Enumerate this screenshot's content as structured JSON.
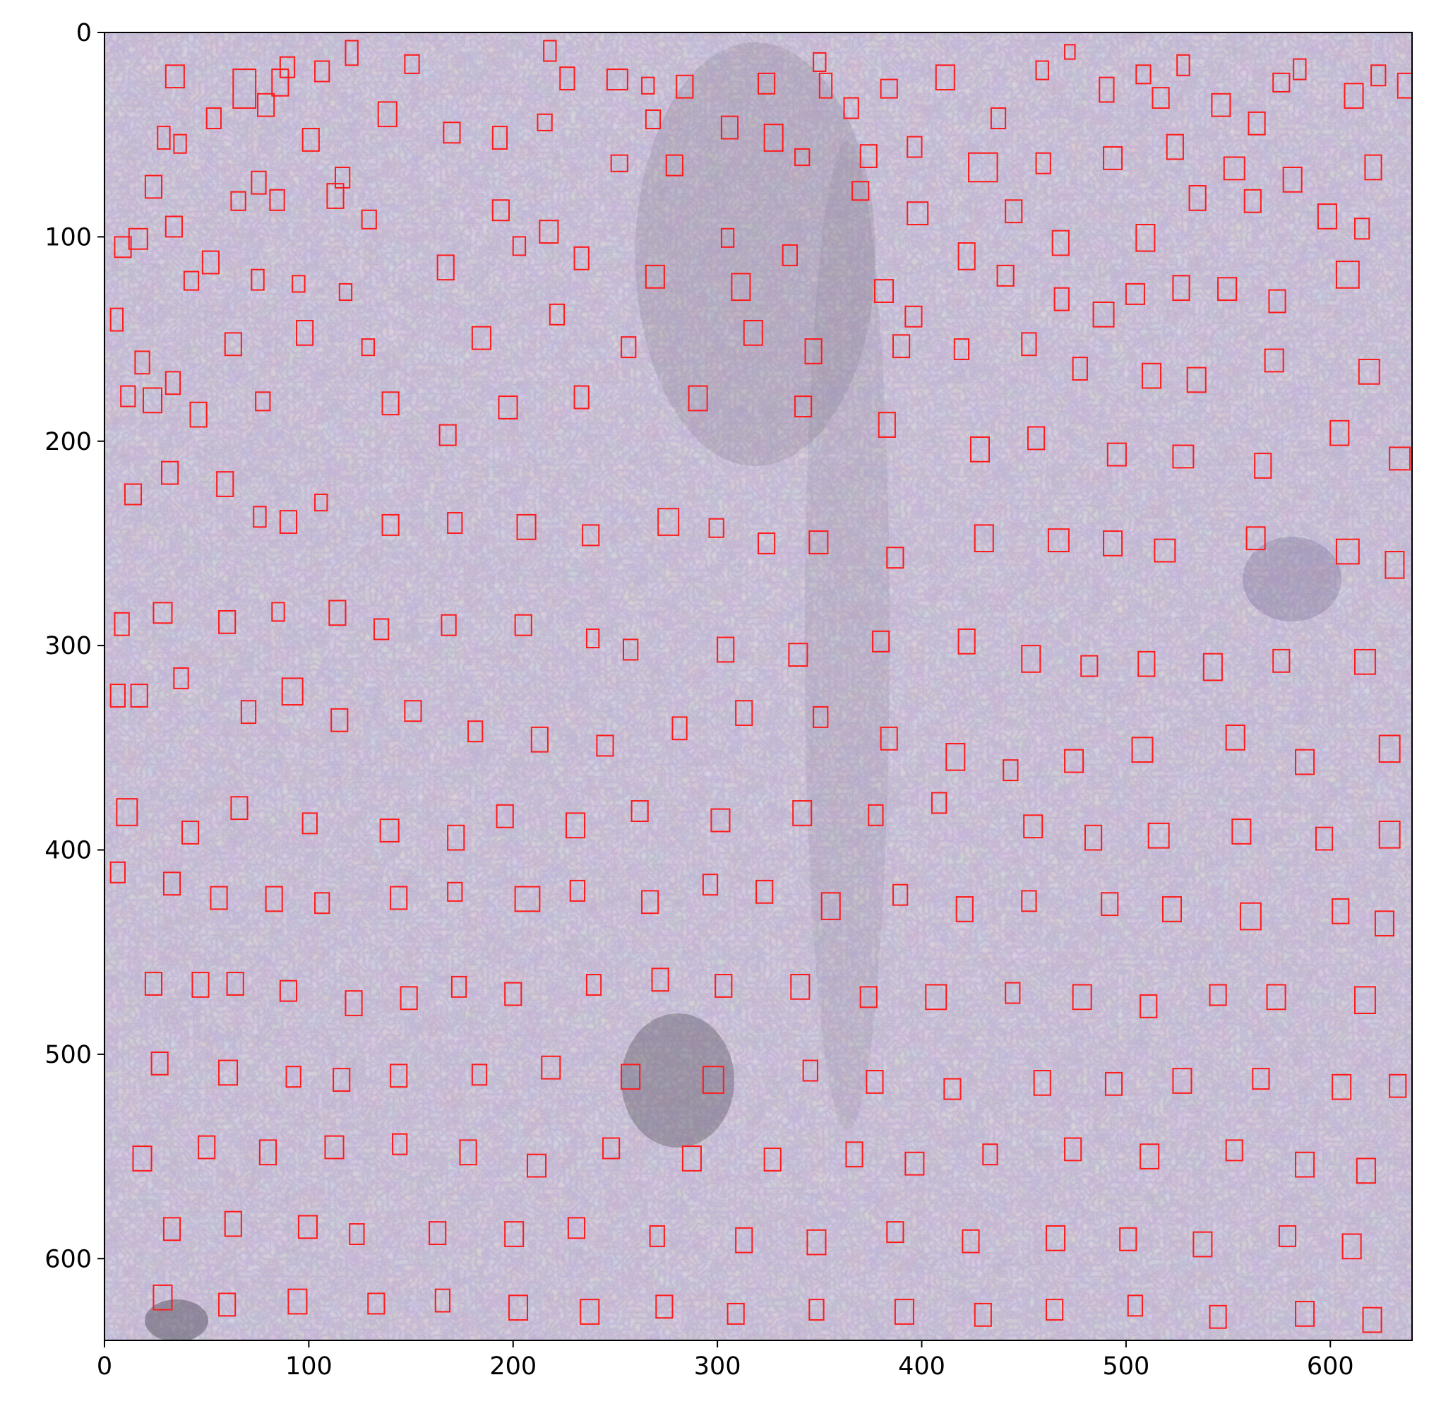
{
  "figure": {
    "image_description_tag": "microscope-image-yeast-cells",
    "x_range": [
      0,
      640
    ],
    "y_range": [
      0,
      640
    ],
    "y_inverted": true,
    "box_color": "#ff1a1a",
    "background_color": "#c9c2cc"
  },
  "axes": {
    "x_ticks": [
      {
        "value": 0,
        "label": "0"
      },
      {
        "value": 100,
        "label": "100"
      },
      {
        "value": 200,
        "label": "200"
      },
      {
        "value": 300,
        "label": "300"
      },
      {
        "value": 400,
        "label": "400"
      },
      {
        "value": 500,
        "label": "500"
      },
      {
        "value": 600,
        "label": "600"
      }
    ],
    "y_ticks": [
      {
        "value": 0,
        "label": "0"
      },
      {
        "value": 100,
        "label": "100"
      },
      {
        "value": 200,
        "label": "200"
      },
      {
        "value": 300,
        "label": "300"
      },
      {
        "value": 400,
        "label": "400"
      },
      {
        "value": 500,
        "label": "500"
      },
      {
        "value": 600,
        "label": "600"
      }
    ]
  },
  "detections": [
    [
      30,
      16,
      9,
      11
    ],
    [
      63,
      18,
      11,
      19
    ],
    [
      82,
      18,
      8,
      13
    ],
    [
      86,
      12,
      7,
      10
    ],
    [
      103,
      14,
      7,
      10
    ],
    [
      118,
      4,
      6,
      12
    ],
    [
      147,
      11,
      7,
      9
    ],
    [
      215,
      4,
      6,
      10
    ],
    [
      223,
      17,
      7,
      11
    ],
    [
      246,
      18,
      10,
      10
    ],
    [
      263,
      22,
      6,
      8
    ],
    [
      280,
      21,
      8,
      11
    ],
    [
      320,
      20,
      8,
      10
    ],
    [
      347,
      10,
      6,
      9
    ],
    [
      350,
      20,
      6,
      12
    ],
    [
      362,
      32,
      7,
      10
    ],
    [
      380,
      23,
      8,
      9
    ],
    [
      407,
      16,
      9,
      12
    ],
    [
      434,
      37,
      7,
      10
    ],
    [
      456,
      14,
      6,
      9
    ],
    [
      470,
      6,
      5,
      7
    ],
    [
      487,
      22,
      7,
      12
    ],
    [
      505,
      16,
      7,
      9
    ],
    [
      513,
      27,
      8,
      10
    ],
    [
      525,
      11,
      6,
      10
    ],
    [
      542,
      30,
      9,
      11
    ],
    [
      560,
      39,
      8,
      11
    ],
    [
      572,
      20,
      8,
      9
    ],
    [
      582,
      13,
      6,
      10
    ],
    [
      607,
      25,
      9,
      12
    ],
    [
      620,
      16,
      7,
      10
    ],
    [
      633,
      20,
      8,
      12
    ],
    [
      26,
      46,
      6,
      11
    ],
    [
      34,
      50,
      6,
      9
    ],
    [
      50,
      37,
      7,
      10
    ],
    [
      75,
      30,
      8,
      11
    ],
    [
      97,
      47,
      8,
      11
    ],
    [
      113,
      66,
      7,
      10
    ],
    [
      134,
      34,
      9,
      12
    ],
    [
      166,
      44,
      8,
      10
    ],
    [
      190,
      46,
      7,
      11
    ],
    [
      212,
      40,
      7,
      8
    ],
    [
      248,
      60,
      8,
      8
    ],
    [
      265,
      38,
      7,
      9
    ],
    [
      302,
      41,
      8,
      11
    ],
    [
      323,
      45,
      9,
      13
    ],
    [
      370,
      55,
      8,
      11
    ],
    [
      393,
      51,
      7,
      10
    ],
    [
      423,
      59,
      14,
      14
    ],
    [
      456,
      59,
      7,
      10
    ],
    [
      489,
      56,
      9,
      11
    ],
    [
      520,
      50,
      8,
      12
    ],
    [
      548,
      61,
      10,
      11
    ],
    [
      577,
      66,
      9,
      12
    ],
    [
      617,
      60,
      8,
      12
    ],
    [
      20,
      70,
      8,
      11
    ],
    [
      30,
      90,
      8,
      10
    ],
    [
      62,
      78,
      7,
      9
    ],
    [
      72,
      68,
      7,
      11
    ],
    [
      81,
      77,
      7,
      10
    ],
    [
      109,
      74,
      8,
      12
    ],
    [
      126,
      87,
      7,
      9
    ],
    [
      190,
      82,
      8,
      10
    ],
    [
      213,
      92,
      9,
      11
    ],
    [
      275,
      60,
      8,
      10
    ],
    [
      302,
      96,
      6,
      9
    ],
    [
      338,
      57,
      7,
      8
    ],
    [
      366,
      73,
      8,
      9
    ],
    [
      393,
      83,
      10,
      11
    ],
    [
      418,
      103,
      8,
      13
    ],
    [
      441,
      82,
      8,
      11
    ],
    [
      464,
      97,
      8,
      12
    ],
    [
      505,
      94,
      9,
      13
    ],
    [
      531,
      75,
      8,
      12
    ],
    [
      558,
      77,
      8,
      11
    ],
    [
      594,
      84,
      9,
      12
    ],
    [
      612,
      91,
      7,
      10
    ],
    [
      5,
      100,
      8,
      10
    ],
    [
      12,
      96,
      9,
      10
    ],
    [
      39,
      117,
      7,
      9
    ],
    [
      48,
      107,
      8,
      11
    ],
    [
      72,
      116,
      6,
      10
    ],
    [
      92,
      119,
      6,
      8
    ],
    [
      115,
      123,
      6,
      8
    ],
    [
      163,
      109,
      8,
      12
    ],
    [
      200,
      100,
      6,
      9
    ],
    [
      230,
      105,
      7,
      11
    ],
    [
      265,
      114,
      9,
      11
    ],
    [
      307,
      118,
      9,
      13
    ],
    [
      332,
      104,
      7,
      10
    ],
    [
      377,
      121,
      9,
      11
    ],
    [
      392,
      134,
      8,
      10
    ],
    [
      437,
      114,
      8,
      10
    ],
    [
      465,
      125,
      7,
      11
    ],
    [
      484,
      132,
      10,
      12
    ],
    [
      500,
      123,
      9,
      10
    ],
    [
      523,
      119,
      8,
      12
    ],
    [
      545,
      120,
      9,
      11
    ],
    [
      570,
      126,
      8,
      11
    ],
    [
      603,
      112,
      11,
      13
    ],
    [
      3,
      135,
      6,
      11
    ],
    [
      15,
      156,
      7,
      11
    ],
    [
      30,
      166,
      7,
      11
    ],
    [
      59,
      147,
      8,
      11
    ],
    [
      94,
      141,
      8,
      12
    ],
    [
      126,
      150,
      6,
      8
    ],
    [
      180,
      144,
      9,
      11
    ],
    [
      218,
      133,
      7,
      10
    ],
    [
      253,
      149,
      7,
      10
    ],
    [
      313,
      141,
      9,
      12
    ],
    [
      343,
      150,
      8,
      12
    ],
    [
      386,
      148,
      8,
      11
    ],
    [
      416,
      150,
      7,
      10
    ],
    [
      449,
      147,
      7,
      11
    ],
    [
      474,
      159,
      7,
      11
    ],
    [
      508,
      162,
      9,
      12
    ],
    [
      530,
      164,
      9,
      12
    ],
    [
      568,
      155,
      9,
      11
    ],
    [
      614,
      160,
      10,
      12
    ],
    [
      8,
      173,
      7,
      10
    ],
    [
      19,
      174,
      9,
      12
    ],
    [
      42,
      181,
      8,
      12
    ],
    [
      74,
      176,
      7,
      9
    ],
    [
      136,
      176,
      8,
      11
    ],
    [
      164,
      192,
      8,
      10
    ],
    [
      193,
      178,
      9,
      11
    ],
    [
      230,
      173,
      7,
      11
    ],
    [
      286,
      173,
      9,
      12
    ],
    [
      338,
      178,
      8,
      10
    ],
    [
      379,
      186,
      8,
      12
    ],
    [
      424,
      198,
      9,
      12
    ],
    [
      452,
      193,
      8,
      11
    ],
    [
      491,
      201,
      9,
      11
    ],
    [
      523,
      202,
      10,
      11
    ],
    [
      563,
      206,
      8,
      12
    ],
    [
      600,
      190,
      9,
      12
    ],
    [
      629,
      203,
      10,
      11
    ],
    [
      10,
      221,
      8,
      10
    ],
    [
      28,
      210,
      8,
      11
    ],
    [
      55,
      215,
      8,
      12
    ],
    [
      73,
      232,
      6,
      10
    ],
    [
      86,
      234,
      8,
      11
    ],
    [
      103,
      226,
      6,
      8
    ],
    [
      136,
      236,
      8,
      10
    ],
    [
      168,
      235,
      7,
      10
    ],
    [
      202,
      236,
      9,
      12
    ],
    [
      234,
      241,
      8,
      10
    ],
    [
      271,
      233,
      10,
      13
    ],
    [
      296,
      238,
      7,
      9
    ],
    [
      320,
      245,
      8,
      10
    ],
    [
      345,
      244,
      9,
      11
    ],
    [
      383,
      252,
      8,
      10
    ],
    [
      426,
      241,
      9,
      13
    ],
    [
      462,
      243,
      10,
      11
    ],
    [
      489,
      244,
      9,
      12
    ],
    [
      514,
      248,
      10,
      11
    ],
    [
      559,
      242,
      9,
      11
    ],
    [
      603,
      248,
      11,
      12
    ],
    [
      627,
      254,
      9,
      13
    ],
    [
      5,
      284,
      7,
      11
    ],
    [
      24,
      279,
      9,
      10
    ],
    [
      56,
      283,
      8,
      11
    ],
    [
      82,
      279,
      6,
      9
    ],
    [
      110,
      278,
      8,
      12
    ],
    [
      132,
      287,
      7,
      10
    ],
    [
      165,
      285,
      7,
      10
    ],
    [
      201,
      285,
      8,
      10
    ],
    [
      236,
      292,
      6,
      9
    ],
    [
      254,
      297,
      7,
      10
    ],
    [
      300,
      296,
      8,
      12
    ],
    [
      335,
      299,
      9,
      11
    ],
    [
      376,
      293,
      8,
      10
    ],
    [
      418,
      292,
      8,
      12
    ],
    [
      449,
      300,
      9,
      13
    ],
    [
      478,
      305,
      8,
      10
    ],
    [
      506,
      303,
      8,
      12
    ],
    [
      538,
      304,
      9,
      13
    ],
    [
      572,
      302,
      8,
      11
    ],
    [
      612,
      302,
      10,
      12
    ],
    [
      3,
      319,
      7,
      11
    ],
    [
      13,
      319,
      8,
      11
    ],
    [
      34,
      311,
      7,
      10
    ],
    [
      67,
      327,
      7,
      11
    ],
    [
      87,
      316,
      10,
      13
    ],
    [
      111,
      331,
      8,
      11
    ],
    [
      147,
      327,
      8,
      10
    ],
    [
      178,
      337,
      7,
      10
    ],
    [
      209,
      340,
      8,
      12
    ],
    [
      241,
      344,
      8,
      10
    ],
    [
      278,
      335,
      7,
      11
    ],
    [
      309,
      327,
      8,
      12
    ],
    [
      347,
      330,
      7,
      10
    ],
    [
      380,
      340,
      8,
      11
    ],
    [
      412,
      348,
      9,
      13
    ],
    [
      440,
      356,
      7,
      10
    ],
    [
      470,
      351,
      9,
      11
    ],
    [
      503,
      345,
      10,
      12
    ],
    [
      549,
      339,
      9,
      12
    ],
    [
      583,
      351,
      9,
      12
    ],
    [
      624,
      344,
      10,
      13
    ],
    [
      6,
      375,
      10,
      13
    ],
    [
      38,
      386,
      8,
      11
    ],
    [
      62,
      374,
      8,
      11
    ],
    [
      97,
      382,
      7,
      10
    ],
    [
      135,
      385,
      9,
      11
    ],
    [
      168,
      388,
      8,
      12
    ],
    [
      192,
      378,
      8,
      11
    ],
    [
      226,
      382,
      9,
      12
    ],
    [
      258,
      376,
      8,
      10
    ],
    [
      297,
      380,
      9,
      11
    ],
    [
      337,
      376,
      9,
      12
    ],
    [
      374,
      378,
      7,
      10
    ],
    [
      405,
      372,
      7,
      10
    ],
    [
      450,
      383,
      9,
      11
    ],
    [
      480,
      388,
      8,
      12
    ],
    [
      511,
      387,
      10,
      12
    ],
    [
      552,
      385,
      9,
      12
    ],
    [
      593,
      389,
      8,
      11
    ],
    [
      624,
      386,
      10,
      13
    ],
    [
      3,
      406,
      7,
      10
    ],
    [
      29,
      411,
      8,
      11
    ],
    [
      52,
      418,
      8,
      11
    ],
    [
      79,
      418,
      8,
      12
    ],
    [
      103,
      421,
      7,
      10
    ],
    [
      140,
      418,
      8,
      11
    ],
    [
      168,
      416,
      7,
      9
    ],
    [
      201,
      418,
      12,
      12
    ],
    [
      228,
      415,
      7,
      10
    ],
    [
      263,
      420,
      8,
      11
    ],
    [
      293,
      412,
      7,
      10
    ],
    [
      319,
      415,
      8,
      11
    ],
    [
      351,
      421,
      9,
      13
    ],
    [
      386,
      417,
      7,
      10
    ],
    [
      417,
      423,
      8,
      12
    ],
    [
      449,
      420,
      7,
      10
    ],
    [
      488,
      421,
      8,
      11
    ],
    [
      518,
      423,
      9,
      12
    ],
    [
      556,
      426,
      10,
      13
    ],
    [
      601,
      424,
      8,
      12
    ],
    [
      622,
      430,
      9,
      12
    ],
    [
      20,
      460,
      8,
      11
    ],
    [
      43,
      460,
      8,
      12
    ],
    [
      60,
      460,
      8,
      11
    ],
    [
      86,
      464,
      8,
      10
    ],
    [
      118,
      469,
      8,
      12
    ],
    [
      145,
      467,
      8,
      11
    ],
    [
      170,
      462,
      7,
      10
    ],
    [
      196,
      465,
      8,
      11
    ],
    [
      236,
      461,
      7,
      10
    ],
    [
      268,
      458,
      8,
      11
    ],
    [
      299,
      461,
      8,
      11
    ],
    [
      336,
      461,
      9,
      12
    ],
    [
      370,
      467,
      8,
      10
    ],
    [
      402,
      466,
      10,
      12
    ],
    [
      441,
      465,
      7,
      10
    ],
    [
      474,
      466,
      9,
      12
    ],
    [
      507,
      471,
      8,
      11
    ],
    [
      541,
      466,
      8,
      10
    ],
    [
      569,
      466,
      9,
      12
    ],
    [
      612,
      467,
      10,
      13
    ],
    [
      23,
      499,
      8,
      11
    ],
    [
      56,
      503,
      9,
      12
    ],
    [
      89,
      506,
      7,
      10
    ],
    [
      112,
      507,
      8,
      11
    ],
    [
      140,
      505,
      8,
      11
    ],
    [
      180,
      505,
      7,
      10
    ],
    [
      214,
      501,
      9,
      11
    ],
    [
      253,
      505,
      9,
      12
    ],
    [
      293,
      506,
      10,
      13
    ],
    [
      342,
      503,
      7,
      10
    ],
    [
      373,
      508,
      8,
      11
    ],
    [
      411,
      512,
      8,
      10
    ],
    [
      455,
      508,
      8,
      12
    ],
    [
      490,
      509,
      8,
      11
    ],
    [
      523,
      507,
      9,
      12
    ],
    [
      562,
      507,
      8,
      10
    ],
    [
      601,
      510,
      9,
      12
    ],
    [
      629,
      510,
      8,
      11
    ],
    [
      14,
      545,
      9,
      12
    ],
    [
      46,
      540,
      8,
      11
    ],
    [
      76,
      542,
      8,
      12
    ],
    [
      108,
      540,
      9,
      11
    ],
    [
      141,
      539,
      7,
      10
    ],
    [
      174,
      542,
      8,
      12
    ],
    [
      207,
      549,
      9,
      11
    ],
    [
      244,
      541,
      8,
      10
    ],
    [
      283,
      545,
      9,
      12
    ],
    [
      323,
      546,
      8,
      11
    ],
    [
      363,
      543,
      8,
      12
    ],
    [
      392,
      548,
      9,
      11
    ],
    [
      430,
      544,
      7,
      10
    ],
    [
      470,
      541,
      8,
      11
    ],
    [
      507,
      544,
      9,
      12
    ],
    [
      549,
      542,
      8,
      10
    ],
    [
      583,
      548,
      9,
      12
    ],
    [
      613,
      551,
      9,
      12
    ],
    [
      29,
      580,
      8,
      11
    ],
    [
      59,
      577,
      8,
      12
    ],
    [
      95,
      579,
      9,
      11
    ],
    [
      120,
      583,
      7,
      10
    ],
    [
      159,
      582,
      8,
      11
    ],
    [
      196,
      582,
      9,
      12
    ],
    [
      227,
      580,
      8,
      10
    ],
    [
      267,
      584,
      7,
      10
    ],
    [
      309,
      585,
      8,
      12
    ],
    [
      344,
      586,
      9,
      12
    ],
    [
      383,
      582,
      8,
      10
    ],
    [
      420,
      586,
      8,
      11
    ],
    [
      461,
      584,
      9,
      12
    ],
    [
      497,
      585,
      8,
      11
    ],
    [
      533,
      587,
      9,
      12
    ],
    [
      575,
      584,
      8,
      10
    ],
    [
      606,
      588,
      9,
      12
    ],
    [
      24,
      613,
      9,
      12
    ],
    [
      56,
      617,
      8,
      11
    ],
    [
      90,
      615,
      9,
      12
    ],
    [
      129,
      617,
      8,
      10
    ],
    [
      162,
      615,
      7,
      11
    ],
    [
      198,
      618,
      9,
      12
    ],
    [
      233,
      620,
      9,
      12
    ],
    [
      270,
      618,
      8,
      11
    ],
    [
      305,
      622,
      8,
      10
    ],
    [
      345,
      620,
      7,
      10
    ],
    [
      387,
      620,
      9,
      12
    ],
    [
      426,
      622,
      8,
      11
    ],
    [
      461,
      620,
      8,
      10
    ],
    [
      501,
      618,
      7,
      10
    ],
    [
      541,
      623,
      8,
      11
    ],
    [
      583,
      621,
      9,
      12
    ],
    [
      616,
      624,
      9,
      12
    ]
  ]
}
